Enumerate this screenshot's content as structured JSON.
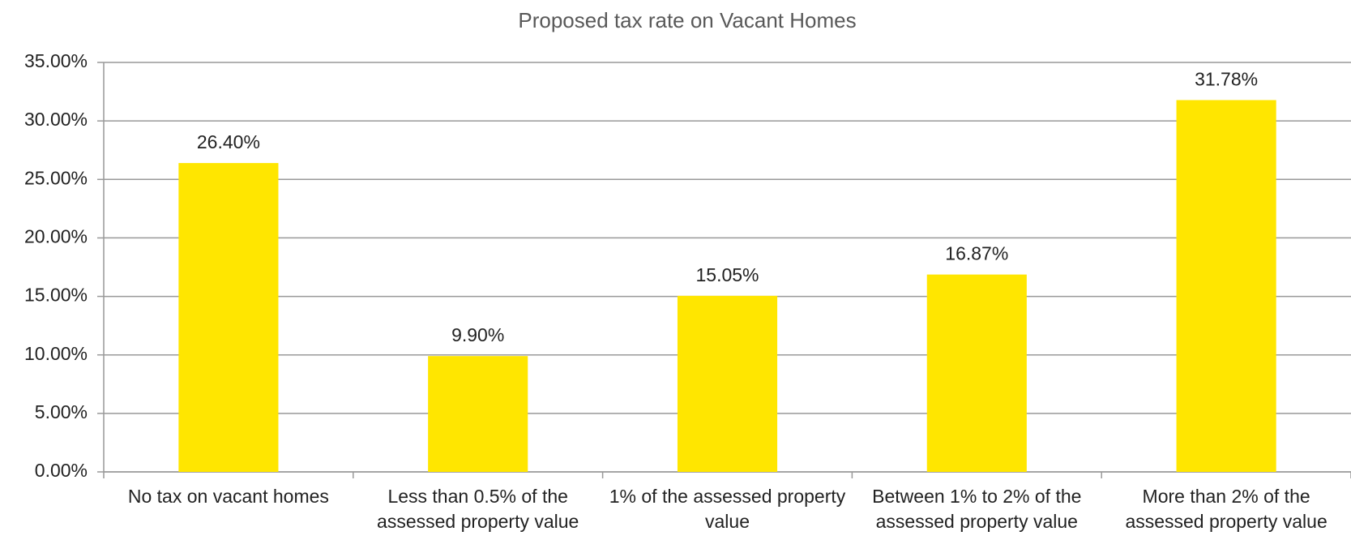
{
  "chart_data": {
    "type": "bar",
    "title": "Proposed tax rate on Vacant Homes",
    "categories": [
      "No tax on vacant homes",
      "Less than 0.5% of the assessed property value",
      "1% of the assessed property value",
      "Between 1% to 2% of the assessed property value",
      "More than 2% of the assessed property value"
    ],
    "values": [
      26.4,
      9.9,
      15.05,
      16.87,
      31.78
    ],
    "value_labels": [
      "26.40%",
      "9.90%",
      "15.05%",
      "16.87%",
      "31.78%"
    ],
    "color": "#FFE600",
    "ylim": [
      0,
      35
    ],
    "yticks": [
      {
        "value": 0,
        "label": "0.00%"
      },
      {
        "value": 5,
        "label": "5.00%"
      },
      {
        "value": 10,
        "label": "10.00%"
      },
      {
        "value": 15,
        "label": "15.00%"
      },
      {
        "value": 20,
        "label": "20.00%"
      },
      {
        "value": 25,
        "label": "25.00%"
      },
      {
        "value": 30,
        "label": "30.00%"
      },
      {
        "value": 35,
        "label": "35.00%"
      }
    ],
    "grid": true
  }
}
